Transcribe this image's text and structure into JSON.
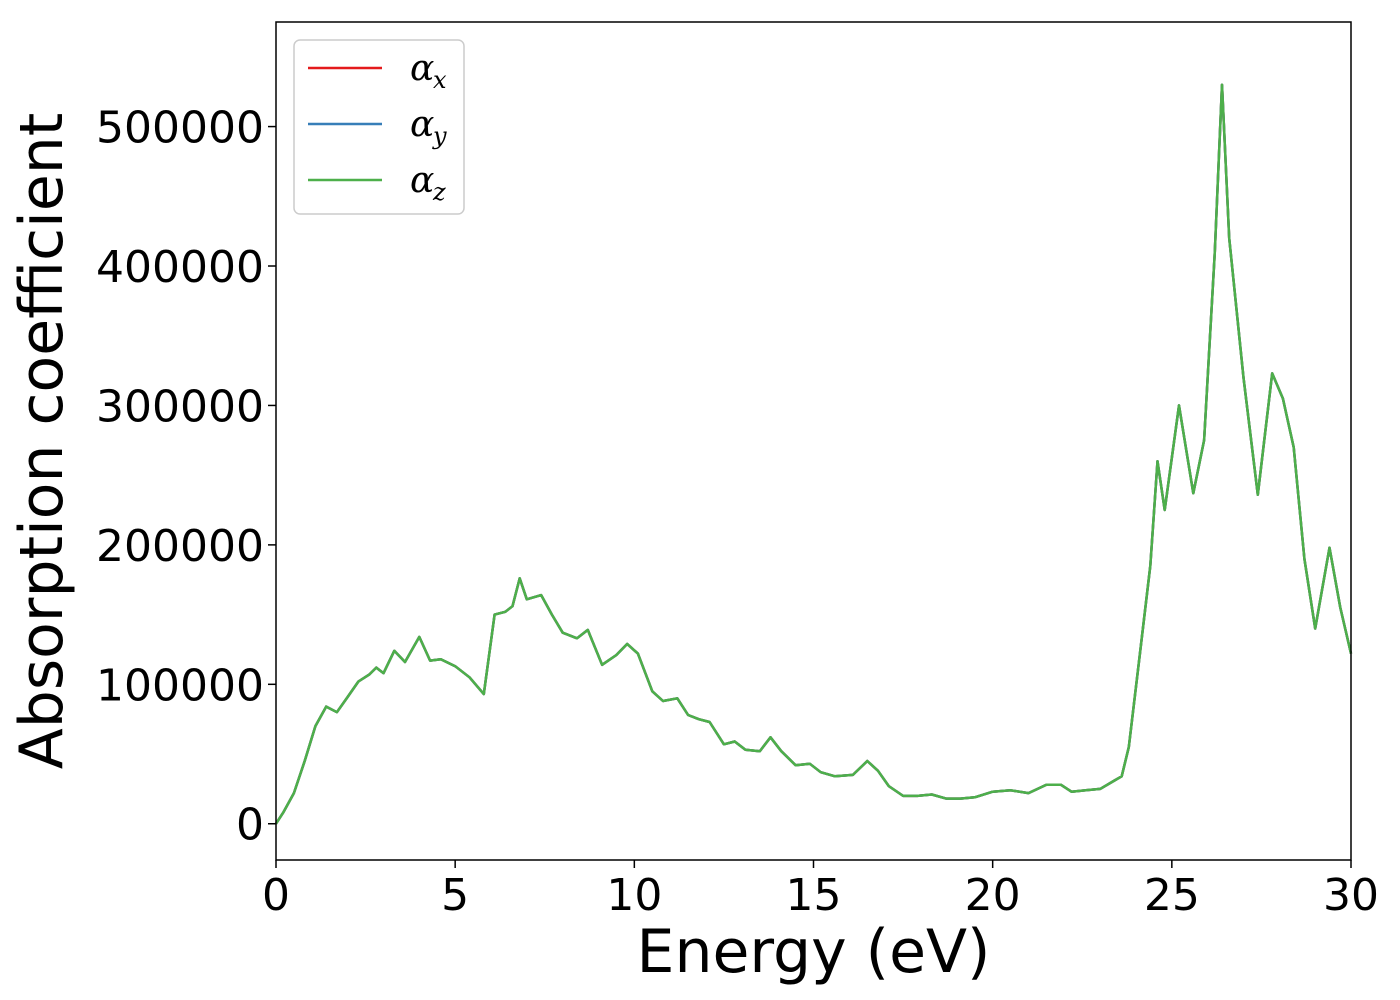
{
  "chart_data": {
    "type": "line",
    "xlabel": "Energy (eV)",
    "ylabel": "Absorption coefficient",
    "xlim": [
      0,
      30
    ],
    "ylim": [
      -26000,
      575000
    ],
    "xticks": [
      0,
      5,
      10,
      15,
      20,
      25,
      30
    ],
    "yticks": [
      0,
      100000,
      200000,
      300000,
      400000,
      500000
    ],
    "legend_position": "upper-left",
    "grid": false,
    "legend": [
      {
        "symbol": "α",
        "subscript": "x",
        "color": "#e41a1c"
      },
      {
        "symbol": "α",
        "subscript": "y",
        "color": "#377eb8"
      },
      {
        "symbol": "α",
        "subscript": "z",
        "color": "#4daf4a"
      }
    ],
    "x": [
      0,
      0.2,
      0.5,
      0.8,
      1.1,
      1.4,
      1.7,
      2.0,
      2.3,
      2.6,
      2.8,
      3.0,
      3.3,
      3.6,
      4.0,
      4.3,
      4.6,
      5.0,
      5.4,
      5.8,
      6.1,
      6.4,
      6.6,
      6.8,
      7.0,
      7.4,
      7.7,
      8.0,
      8.4,
      8.7,
      9.1,
      9.5,
      9.8,
      10.1,
      10.5,
      10.8,
      11.2,
      11.5,
      11.8,
      12.1,
      12.5,
      12.8,
      13.1,
      13.5,
      13.8,
      14.1,
      14.5,
      14.9,
      15.2,
      15.6,
      16.1,
      16.5,
      16.8,
      17.1,
      17.5,
      17.9,
      18.3,
      18.7,
      19.1,
      19.5,
      20.0,
      20.5,
      21.0,
      21.5,
      21.9,
      22.2,
      22.6,
      23.0,
      23.4,
      23.6,
      23.8,
      24.1,
      24.4,
      24.6,
      24.8,
      25.2,
      25.6,
      25.9,
      26.2,
      26.4,
      26.6,
      27.0,
      27.4,
      27.8,
      28.1,
      28.4,
      28.7,
      29.0,
      29.4,
      29.7,
      30.0
    ],
    "series": [
      {
        "name": "αx",
        "color": "#e41a1c",
        "values": [
          0,
          8000,
          22000,
          45000,
          70000,
          84000,
          80000,
          91000,
          102000,
          107000,
          112000,
          108000,
          124000,
          116000,
          134000,
          117000,
          118000,
          113000,
          105000,
          93000,
          150000,
          152000,
          156000,
          176000,
          161000,
          164000,
          150000,
          137000,
          133000,
          139000,
          114000,
          121000,
          129000,
          122000,
          95000,
          88000,
          90000,
          78000,
          75000,
          73000,
          57000,
          59000,
          53000,
          52000,
          62000,
          52000,
          42000,
          43000,
          37000,
          34000,
          35000,
          45000,
          38000,
          27000,
          20000,
          20000,
          21000,
          18000,
          18000,
          19000,
          23000,
          24000,
          22000,
          28000,
          28000,
          23000,
          24000,
          25000,
          31000,
          34000,
          55000,
          120000,
          185000,
          260000,
          225000,
          300000,
          237000,
          275000,
          410000,
          530000,
          420000,
          320000,
          236000,
          323000,
          305000,
          270000,
          190000,
          140000,
          198000,
          155000,
          122000
        ]
      },
      {
        "name": "αy",
        "color": "#377eb8",
        "values": [
          0,
          8000,
          22000,
          45000,
          70000,
          84000,
          80000,
          91000,
          102000,
          107000,
          112000,
          108000,
          124000,
          116000,
          134000,
          117000,
          118000,
          113000,
          105000,
          93000,
          150000,
          152000,
          156000,
          176000,
          161000,
          164000,
          150000,
          137000,
          133000,
          139000,
          114000,
          121000,
          129000,
          122000,
          95000,
          88000,
          90000,
          78000,
          75000,
          73000,
          57000,
          59000,
          53000,
          52000,
          62000,
          52000,
          42000,
          43000,
          37000,
          34000,
          35000,
          45000,
          38000,
          27000,
          20000,
          20000,
          21000,
          18000,
          18000,
          19000,
          23000,
          24000,
          22000,
          28000,
          28000,
          23000,
          24000,
          25000,
          31000,
          34000,
          55000,
          120000,
          185000,
          260000,
          225000,
          300000,
          237000,
          275000,
          410000,
          530000,
          420000,
          320000,
          236000,
          323000,
          305000,
          270000,
          190000,
          140000,
          198000,
          155000,
          122000
        ]
      },
      {
        "name": "αz",
        "color": "#4daf4a",
        "values": [
          0,
          8000,
          22000,
          45000,
          70000,
          84000,
          80000,
          91000,
          102000,
          107000,
          112000,
          108000,
          124000,
          116000,
          134000,
          117000,
          118000,
          113000,
          105000,
          93000,
          150000,
          152000,
          156000,
          176000,
          161000,
          164000,
          150000,
          137000,
          133000,
          139000,
          114000,
          121000,
          129000,
          122000,
          95000,
          88000,
          90000,
          78000,
          75000,
          73000,
          57000,
          59000,
          53000,
          52000,
          62000,
          52000,
          42000,
          43000,
          37000,
          34000,
          35000,
          45000,
          38000,
          27000,
          20000,
          20000,
          21000,
          18000,
          18000,
          19000,
          23000,
          24000,
          22000,
          28000,
          28000,
          23000,
          24000,
          25000,
          31000,
          34000,
          55000,
          120000,
          185000,
          260000,
          225000,
          300000,
          237000,
          275000,
          410000,
          530000,
          420000,
          320000,
          236000,
          323000,
          305000,
          270000,
          190000,
          140000,
          198000,
          155000,
          122000
        ]
      }
    ]
  }
}
